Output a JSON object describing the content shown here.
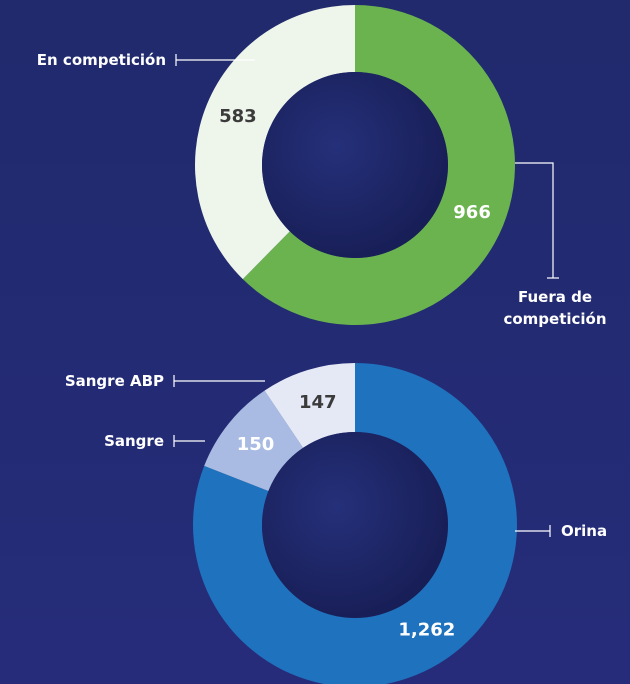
{
  "chart_data": [
    {
      "type": "pie",
      "categories": [
        "Fuera de competición",
        "En competición"
      ],
      "values": [
        966,
        583
      ],
      "colors": [
        "#6ab34f",
        "#eef5ea"
      ],
      "label_colors": [
        "#ffffff",
        "#3b3b3b"
      ]
    },
    {
      "type": "pie",
      "categories": [
        "Orina",
        "Sangre",
        "Sangre  ABP"
      ],
      "values": [
        1262,
        150,
        147
      ],
      "value_labels": [
        "1,262",
        "150",
        "147"
      ],
      "colors": [
        "#1f72bd",
        "#a9bbe3",
        "#e5e9f6"
      ],
      "label_colors": [
        "#ffffff",
        "#ffffff",
        "#3b3b3b"
      ]
    }
  ]
}
